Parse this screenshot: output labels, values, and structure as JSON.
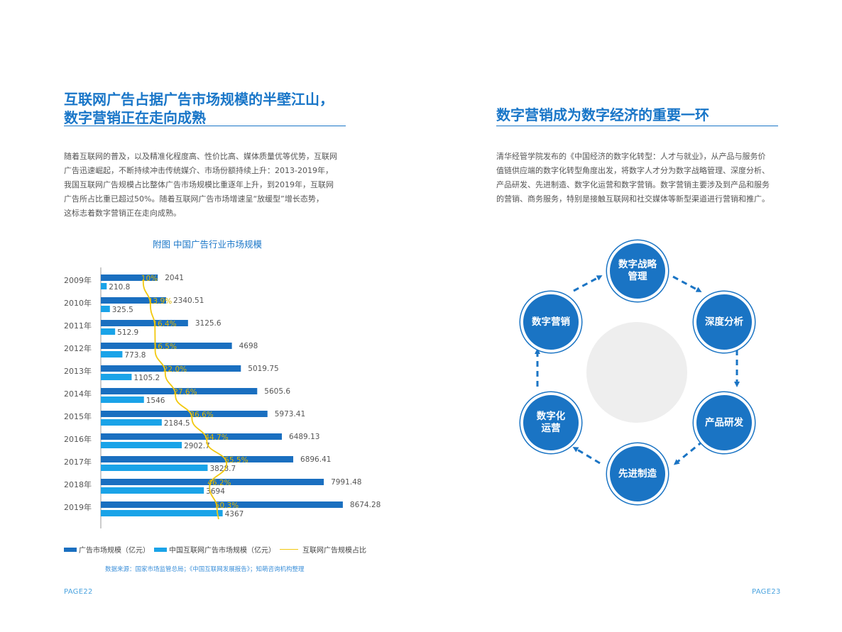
{
  "left": {
    "title_line1": "互联网广告占据广告市场规模的半壁江山，",
    "title_line2": "数字营销正在走向成熟",
    "paragraph_lines": [
      "随着互联网的普及，以及精准化程度高、性价比高、媒体质量优等优势，互联网",
      "广告迅速崛起，不断持续冲击传统媒介、市场份额持续上升：2013-2019年，",
      "我国互联网广告规模占比整体广告市场规模比重逐年上升，到2019年，互联网",
      "广告所占比重已超过50%。随着互联网广告市场增速呈“放缓型”增长态势，",
      "这标志着数字营销正在走向成熟。"
    ],
    "chart_caption": "附图  中国广告行业市场规模",
    "source": "数据来源：国家市场监管总局；《中国互联网发展报告》；知萌咨询机构整理",
    "page": "PAGE22"
  },
  "right": {
    "title": "数字营销成为数字经济的重要一环",
    "paragraph_lines": [
      "清华经管学院发布的《中国经济的数字化转型：人才与就业》，从产品与服务价",
      "值链供应端的数字化转型角度出发，将数字人才分为数字战略管理、深度分析、",
      "产品研发、先进制造、数字化运营和数字营销。数字营销主要涉及到产品和服务",
      "的营销、商务服务，特别是接触互联网和社交媒体等新型渠道进行营销和推广。"
    ],
    "cycle": {
      "strategy": [
        "数字战略",
        "管理"
      ],
      "analysis": [
        "深度分析"
      ],
      "rnd": [
        "产品研发"
      ],
      "manufacturing": [
        "先进制造"
      ],
      "operations": [
        "数字化",
        "运营"
      ],
      "marketing": [
        "数字营销"
      ]
    },
    "page": "PAGE23"
  },
  "colors": {
    "accent": "#1976c8",
    "bar_total": "#1a6fc0",
    "bar_internet": "#1aa3e8",
    "ratio_line": "#f2c80f",
    "circle_gray": "#eeeeee"
  },
  "chart_data": {
    "type": "bar",
    "orientation": "horizontal",
    "categories": [
      "2009年",
      "2010年",
      "2011年",
      "2012年",
      "2013年",
      "2014年",
      "2015年",
      "2016年",
      "2017年",
      "2018年",
      "2019年"
    ],
    "series": [
      {
        "name": "广告市场规模（亿元）",
        "values": [
          2041,
          2340.51,
          3125.6,
          4698,
          5019.75,
          5605.6,
          5973.41,
          6489.13,
          6896.41,
          7991.48,
          8674.28
        ],
        "labels": [
          "2041",
          "2340.51",
          "3125.6",
          "4698",
          "5019.75",
          "5605.6",
          "5973.41",
          "6489.13",
          "6896.41",
          "7991.48",
          "8674.28"
        ]
      },
      {
        "name": "中国互联网广告市场规模（亿元）",
        "values": [
          210.8,
          325.5,
          512.9,
          773.8,
          1105.2,
          1546,
          2184.5,
          2902.7,
          3828.7,
          3694,
          4367
        ],
        "labels": [
          "210.8",
          "325.5",
          "512.9",
          "773.8",
          "1105.2",
          "1546",
          "2184.5",
          "2902.7",
          "3828.7",
          "3694",
          "4367"
        ]
      },
      {
        "name": "互联网广告规模占比",
        "type": "line",
        "values": [
          10,
          13.9,
          16.4,
          16.5,
          22.0,
          27.6,
          36.6,
          44.7,
          55.5,
          46.2,
          50.3
        ],
        "labels": [
          "10%",
          "13.9%",
          "16.4%",
          "16.5%",
          "22.0%",
          "27.6%",
          "36.6%",
          "44.7%",
          "55.5%",
          "46.2%",
          "50.3%"
        ]
      }
    ],
    "title": "附图  中国广告行业市场规模",
    "legend_position": "bottom"
  }
}
